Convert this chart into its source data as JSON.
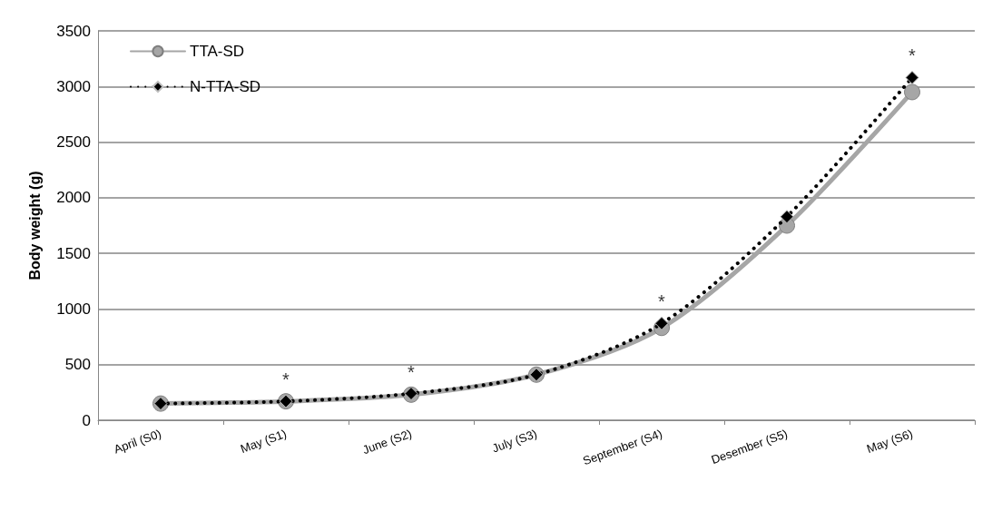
{
  "chart_data": {
    "type": "line",
    "ylabel": "Body weight (g)",
    "categories": [
      "April (S0)",
      "May (S1)",
      "June (S2)",
      "July (S3)",
      "September (S4)",
      "Desember (S5)",
      "May (S6)"
    ],
    "series": [
      {
        "name": "TTA-SD",
        "color": "#a6a6a6",
        "marker": "circle",
        "line_style": "solid",
        "values": [
          150,
          170,
          230,
          410,
          830,
          1750,
          2950
        ]
      },
      {
        "name": "N-TTA-SD",
        "color": "#000000",
        "marker": "diamond",
        "line_style": "dotted",
        "values": [
          150,
          170,
          240,
          410,
          870,
          1830,
          3080
        ]
      }
    ],
    "ylim": [
      0,
      3500
    ],
    "yticks": [
      0,
      500,
      1000,
      1500,
      2000,
      2500,
      3000,
      3500
    ],
    "grid": "y",
    "legend": "top left",
    "annotations": [
      {
        "text": "*",
        "x": "May (S1)",
        "y": 170
      },
      {
        "text": "*",
        "x": "June (S2)",
        "y": 240
      },
      {
        "text": "*",
        "x": "September (S4)",
        "y": 870
      },
      {
        "text": "*",
        "x": "May (S6)",
        "y": 3080
      }
    ]
  }
}
